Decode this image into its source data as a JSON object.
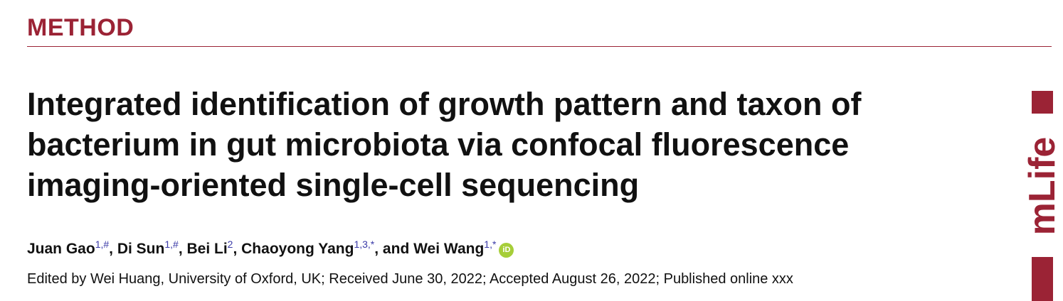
{
  "header": {
    "section": "METHOD",
    "logo": "mLife"
  },
  "title": {
    "lines": [
      "Integrated identification of growth pattern and taxon of",
      "bacterium in gut microbiota via confocal fluorescence",
      "imaging-oriented single-cell sequencing"
    ]
  },
  "authors": {
    "items": [
      {
        "name": "Juan Gao",
        "sup": "1,#"
      },
      {
        "name": "Di Sun",
        "sup": "1,#"
      },
      {
        "name": "Bei Li",
        "sup": "2"
      },
      {
        "name": "Chaoyong Yang",
        "sup": "1,3,*"
      },
      {
        "name": "Wei Wang",
        "sup": "1,*"
      }
    ],
    "separators": [
      ", ",
      ", ",
      ", ",
      ", and "
    ],
    "orcid": "iD"
  },
  "editorial": "Edited by Wei Huang, University of Oxford, UK; Received June 30, 2022; Accepted August 26, 2022; Published online xxx"
}
